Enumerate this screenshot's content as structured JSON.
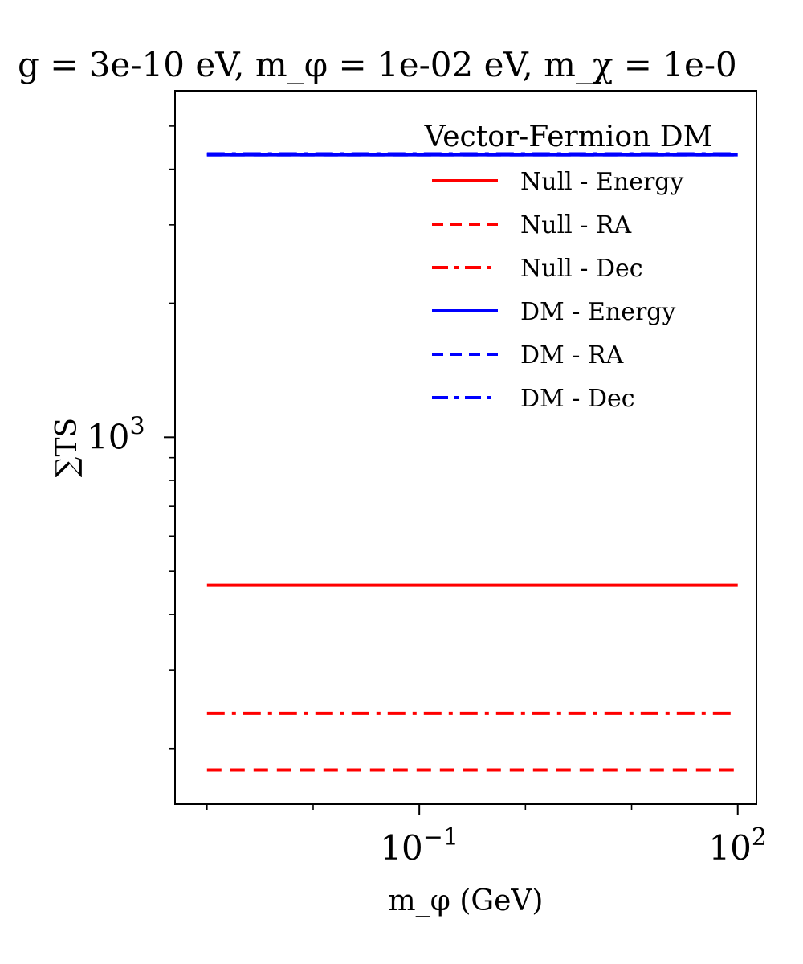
{
  "chart_data": {
    "type": "line",
    "title": "g = 3e-10 eV, m_φ = 1e-02 eV, m_χ = 1e-0",
    "xlabel": "m_φ (GeV)",
    "ylabel": "∑TS",
    "x_scale": "log",
    "y_scale": "log",
    "xlim": [
      0.0005,
      150
    ],
    "ylim": [
      150,
      6000
    ],
    "x_ticks": [
      {
        "value": 0.1,
        "base": "10",
        "exp": "−1"
      },
      {
        "value": 100,
        "base": "10",
        "exp": "2"
      }
    ],
    "y_ticks": [
      {
        "value": 1000,
        "base": "10",
        "exp": "3"
      }
    ],
    "grid": false,
    "legend": {
      "title": "Vector-Fermion DM",
      "placement": "top-right"
    },
    "x": [
      0.001,
      100
    ],
    "series": [
      {
        "name": "Null - Energy",
        "color": "#ff0000",
        "style": "solid",
        "values": [
          465,
          465
        ]
      },
      {
        "name": "Null - RA",
        "color": "#ff0000",
        "style": "dashed",
        "values": [
          179,
          179
        ]
      },
      {
        "name": "Null - Dec",
        "color": "#ff0000",
        "style": "dashdot",
        "values": [
          240,
          240
        ]
      },
      {
        "name": "DM - Energy",
        "color": "#0000ff",
        "style": "solid",
        "values": [
          4310,
          4310
        ]
      },
      {
        "name": "DM - RA",
        "color": "#0000ff",
        "style": "dashed",
        "values": [
          4310,
          4310
        ]
      },
      {
        "name": "DM - Dec",
        "color": "#0000ff",
        "style": "dashdot",
        "values": [
          4330,
          4330
        ]
      }
    ]
  }
}
